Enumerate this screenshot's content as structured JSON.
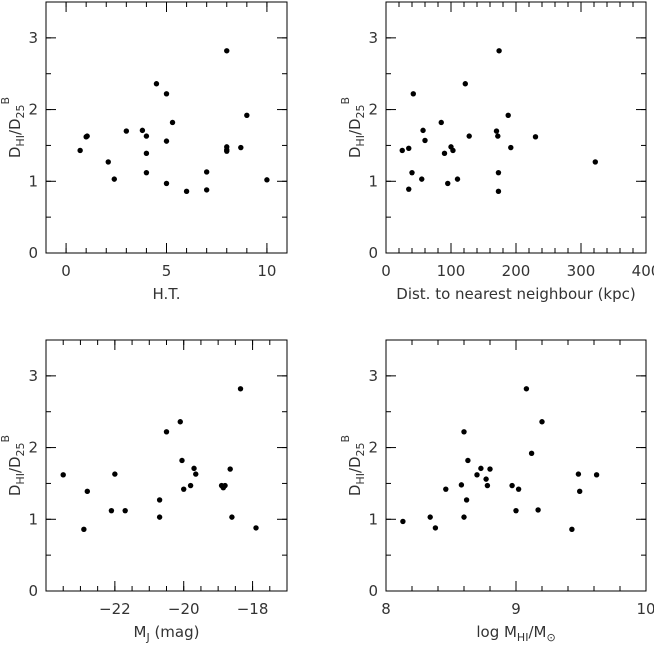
{
  "chart_data": [
    {
      "type": "scatter",
      "xlabel": "H.T.",
      "ylabel": {
        "main": "D",
        "sub1": "HI",
        "mid": "/D",
        "sub2": "25",
        "sup": "B"
      },
      "xlim": [
        -1,
        11
      ],
      "ylim": [
        0,
        3.5
      ],
      "xticks": [
        0,
        5,
        10
      ],
      "yticks": [
        0,
        1,
        2,
        3
      ],
      "xminor": 1,
      "yminor": 0.5,
      "points": [
        {
          "x": 0.7,
          "y": 1.43
        },
        {
          "x": 1.0,
          "y": 1.62
        },
        {
          "x": 1.05,
          "y": 1.63
        },
        {
          "x": 2.1,
          "y": 1.27
        },
        {
          "x": 2.4,
          "y": 1.03
        },
        {
          "x": 3.0,
          "y": 1.7
        },
        {
          "x": 3.8,
          "y": 1.71
        },
        {
          "x": 4.0,
          "y": 1.63
        },
        {
          "x": 4.0,
          "y": 1.39
        },
        {
          "x": 4.0,
          "y": 1.12
        },
        {
          "x": 4.5,
          "y": 2.36
        },
        {
          "x": 5.0,
          "y": 2.22
        },
        {
          "x": 5.0,
          "y": 1.56
        },
        {
          "x": 5.0,
          "y": 0.97
        },
        {
          "x": 5.3,
          "y": 1.82
        },
        {
          "x": 6.0,
          "y": 0.86
        },
        {
          "x": 7.0,
          "y": 1.13
        },
        {
          "x": 7.0,
          "y": 0.88
        },
        {
          "x": 8.0,
          "y": 2.82
        },
        {
          "x": 8.0,
          "y": 1.48
        },
        {
          "x": 8.0,
          "y": 1.44
        },
        {
          "x": 8.0,
          "y": 1.42
        },
        {
          "x": 8.7,
          "y": 1.47
        },
        {
          "x": 9.0,
          "y": 1.92
        },
        {
          "x": 10.0,
          "y": 1.02
        }
      ]
    },
    {
      "type": "scatter",
      "xlabel": "Dist. to nearest neighbour (kpc)",
      "ylabel": {
        "main": "D",
        "sub1": "HI",
        "mid": "/D",
        "sub2": "25",
        "sup": "B"
      },
      "xlim": [
        0,
        400
      ],
      "ylim": [
        0,
        3.5
      ],
      "xticks": [
        0,
        100,
        200,
        300,
        400
      ],
      "yticks": [
        0,
        1,
        2,
        3
      ],
      "xminor": 20,
      "yminor": 0.5,
      "points": [
        {
          "x": 25,
          "y": 1.43
        },
        {
          "x": 35,
          "y": 0.89
        },
        {
          "x": 35,
          "y": 1.46
        },
        {
          "x": 40,
          "y": 1.12
        },
        {
          "x": 42,
          "y": 2.22
        },
        {
          "x": 55,
          "y": 1.03
        },
        {
          "x": 57,
          "y": 1.71
        },
        {
          "x": 60,
          "y": 1.57
        },
        {
          "x": 85,
          "y": 1.82
        },
        {
          "x": 90,
          "y": 1.39
        },
        {
          "x": 95,
          "y": 0.97
        },
        {
          "x": 100,
          "y": 1.48
        },
        {
          "x": 103,
          "y": 1.43
        },
        {
          "x": 110,
          "y": 1.03
        },
        {
          "x": 122,
          "y": 2.36
        },
        {
          "x": 128,
          "y": 1.63
        },
        {
          "x": 170,
          "y": 1.7
        },
        {
          "x": 172,
          "y": 1.63
        },
        {
          "x": 173,
          "y": 1.12
        },
        {
          "x": 173,
          "y": 0.86
        },
        {
          "x": 174,
          "y": 2.82
        },
        {
          "x": 188,
          "y": 1.92
        },
        {
          "x": 192,
          "y": 1.47
        },
        {
          "x": 230,
          "y": 1.62
        },
        {
          "x": 322,
          "y": 1.27
        }
      ]
    },
    {
      "type": "scatter",
      "xlabel": {
        "main": "M",
        "sub": "J",
        "tail": " (mag)"
      },
      "ylabel": {
        "main": "D",
        "sub1": "HI",
        "mid": "/D",
        "sub2": "25",
        "sup": "B"
      },
      "xlim": [
        -24,
        -17
      ],
      "ylim": [
        0,
        3.5
      ],
      "xticks": [
        -22,
        -20,
        -18
      ],
      "xtick_labels": [
        "−22",
        "−20",
        "−18"
      ],
      "yticks": [
        0,
        1,
        2,
        3
      ],
      "xminor": 0.5,
      "yminor": 0.5,
      "points": [
        {
          "x": -23.5,
          "y": 1.62
        },
        {
          "x": -22.9,
          "y": 0.86
        },
        {
          "x": -22.8,
          "y": 1.39
        },
        {
          "x": -22.1,
          "y": 1.12
        },
        {
          "x": -22.0,
          "y": 1.63
        },
        {
          "x": -21.7,
          "y": 1.12
        },
        {
          "x": -20.7,
          "y": 1.27
        },
        {
          "x": -20.7,
          "y": 1.03
        },
        {
          "x": -20.5,
          "y": 2.22
        },
        {
          "x": -20.1,
          "y": 2.36
        },
        {
          "x": -20.05,
          "y": 1.82
        },
        {
          "x": -20.0,
          "y": 1.42
        },
        {
          "x": -19.8,
          "y": 1.47
        },
        {
          "x": -19.7,
          "y": 1.71
        },
        {
          "x": -19.65,
          "y": 1.63
        },
        {
          "x": -18.9,
          "y": 1.47
        },
        {
          "x": -18.85,
          "y": 1.44
        },
        {
          "x": -18.8,
          "y": 1.47
        },
        {
          "x": -18.65,
          "y": 1.7
        },
        {
          "x": -18.6,
          "y": 1.03
        },
        {
          "x": -18.35,
          "y": 2.82
        },
        {
          "x": -17.9,
          "y": 0.88
        }
      ]
    },
    {
      "type": "scatter",
      "xlabel": {
        "main": "log M",
        "sub": "HI",
        "mid": "/M",
        "sun": "⊙"
      },
      "ylabel": {
        "main": "D",
        "sub1": "HI",
        "mid": "/D",
        "sub2": "25",
        "sup": "B"
      },
      "xlim": [
        8,
        10
      ],
      "ylim": [
        0,
        3.5
      ],
      "xticks": [
        8,
        9,
        10
      ],
      "yticks": [
        0,
        1,
        2,
        3
      ],
      "xminor": 0.2,
      "yminor": 0.5,
      "points": [
        {
          "x": 8.13,
          "y": 0.97
        },
        {
          "x": 8.34,
          "y": 1.03
        },
        {
          "x": 8.38,
          "y": 0.88
        },
        {
          "x": 8.46,
          "y": 1.42
        },
        {
          "x": 8.58,
          "y": 1.48
        },
        {
          "x": 8.6,
          "y": 1.03
        },
        {
          "x": 8.6,
          "y": 2.22
        },
        {
          "x": 8.62,
          "y": 1.27
        },
        {
          "x": 8.63,
          "y": 1.82
        },
        {
          "x": 8.7,
          "y": 1.62
        },
        {
          "x": 8.73,
          "y": 1.71
        },
        {
          "x": 8.77,
          "y": 1.56
        },
        {
          "x": 8.78,
          "y": 1.47
        },
        {
          "x": 8.8,
          "y": 1.7
        },
        {
          "x": 8.97,
          "y": 1.47
        },
        {
          "x": 9.0,
          "y": 1.12
        },
        {
          "x": 9.02,
          "y": 1.42
        },
        {
          "x": 9.08,
          "y": 2.82
        },
        {
          "x": 9.12,
          "y": 1.92
        },
        {
          "x": 9.17,
          "y": 1.13
        },
        {
          "x": 9.2,
          "y": 2.36
        },
        {
          "x": 9.43,
          "y": 0.86
        },
        {
          "x": 9.48,
          "y": 1.63
        },
        {
          "x": 9.49,
          "y": 1.39
        },
        {
          "x": 9.62,
          "y": 1.62
        }
      ]
    }
  ]
}
